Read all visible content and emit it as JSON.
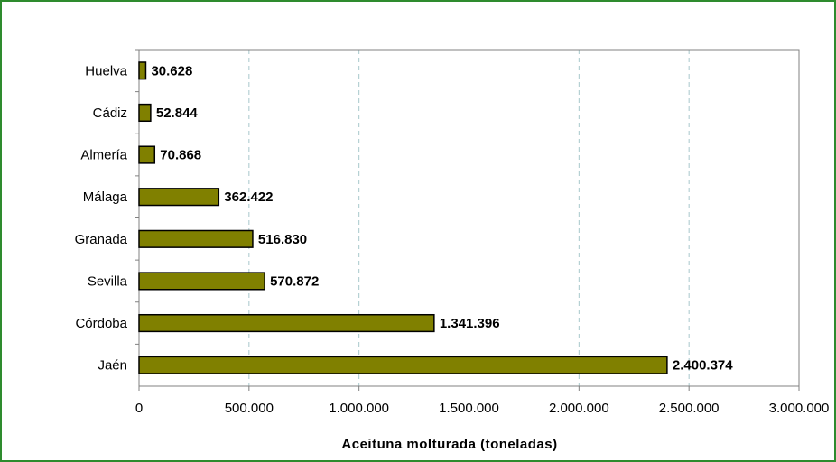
{
  "chart_data": {
    "type": "bar",
    "orientation": "horizontal",
    "categories": [
      "Huelva",
      "Cádiz",
      "Almería",
      "Málaga",
      "Granada",
      "Sevilla",
      "Córdoba",
      "Jaén"
    ],
    "values": [
      30628,
      52844,
      70868,
      362422,
      516830,
      570872,
      1341396,
      2400374
    ],
    "value_labels": [
      "30.628",
      "52.844",
      "70.868",
      "362.422",
      "516.830",
      "570.872",
      "1.341.396",
      "2.400.374"
    ],
    "xlabel": "Aceituna molturada (toneladas)",
    "xlim": [
      0,
      3000000
    ],
    "x_ticks": [
      0,
      500000,
      1000000,
      1500000,
      2000000,
      2500000,
      3000000
    ],
    "x_tick_labels": [
      "0",
      "500.000",
      "1.000.000",
      "1.500.000",
      "2.000.000",
      "2.500.000",
      "3.000.000"
    ],
    "grid": "vertical-dashed",
    "colors": {
      "bar_fill": "#808000",
      "bar_stroke": "#000000",
      "grid": "#a8c8cc",
      "frame": "#2e8b2e"
    }
  }
}
